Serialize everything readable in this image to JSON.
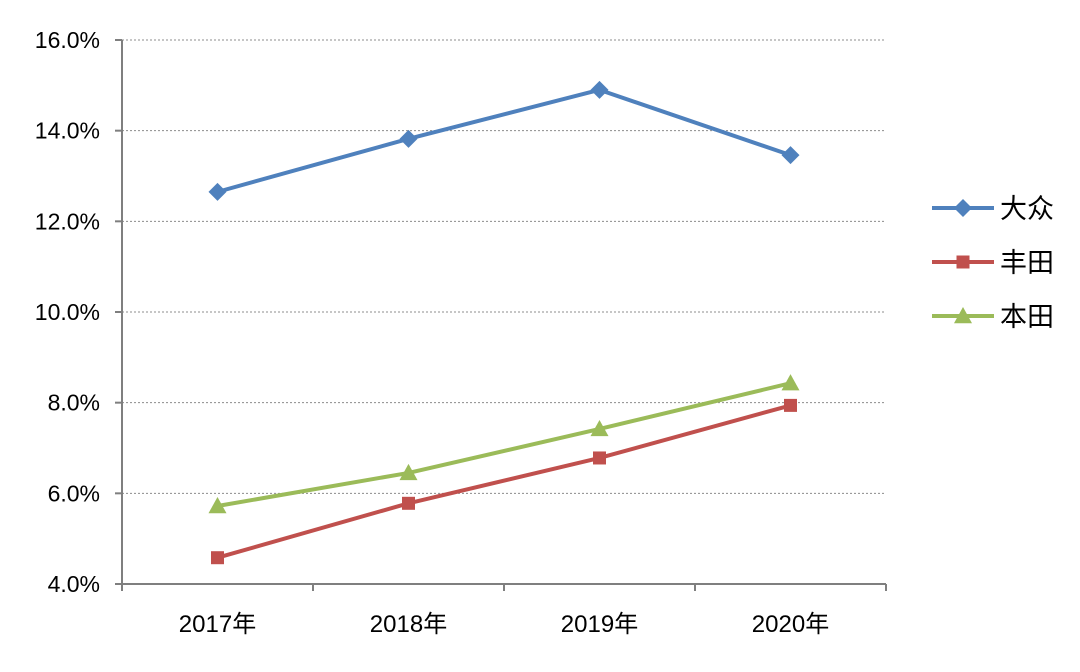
{
  "chart_data": {
    "type": "line",
    "categories": [
      "2017年",
      "2018年",
      "2019年",
      "2020年"
    ],
    "series": [
      {
        "name": "大众",
        "values": [
          12.65,
          13.82,
          14.9,
          13.46
        ],
        "color": "#4F81BD",
        "marker": "diamond"
      },
      {
        "name": "丰田",
        "values": [
          4.58,
          5.78,
          6.78,
          7.94
        ],
        "color": "#C0504D",
        "marker": "square"
      },
      {
        "name": "本田",
        "values": [
          5.72,
          6.45,
          7.42,
          8.43
        ],
        "color": "#9BBB59",
        "marker": "triangle"
      }
    ],
    "y_ticks": [
      "4.0%",
      "6.0%",
      "8.0%",
      "10.0%",
      "12.0%",
      "14.0%",
      "16.0%"
    ],
    "ylim": [
      4,
      16
    ],
    "y_unit": "%",
    "grid": true,
    "legend_position": "right"
  }
}
